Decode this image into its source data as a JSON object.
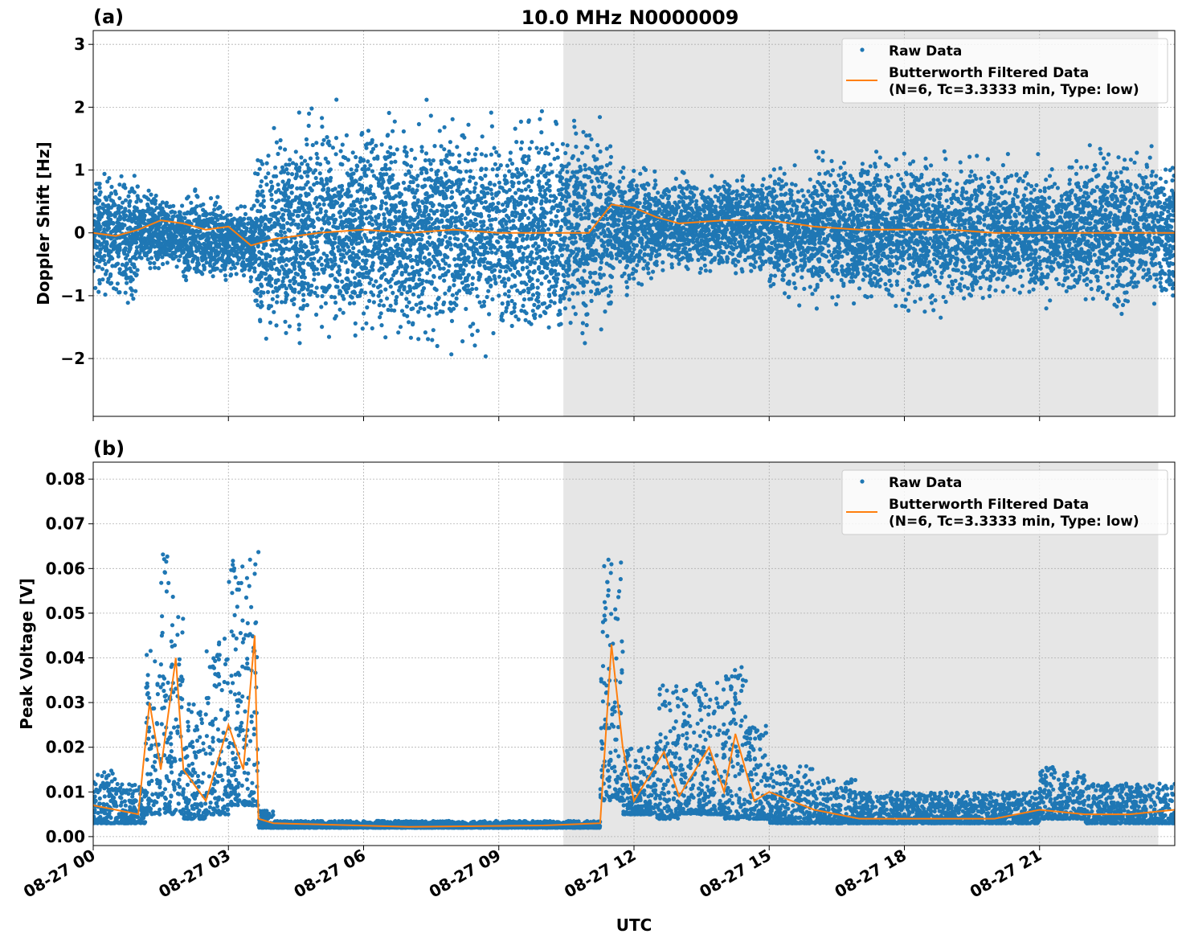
{
  "title": "10.0 MHz N0000009",
  "colors": {
    "raw": "#1f77b4",
    "filtered": "#ff7f0e",
    "shade": "#e6e6e6",
    "grid": "#b0b0b0"
  },
  "chart_data": [
    {
      "type": "scatter",
      "panel_label": "(a)",
      "ylabel": "Doppler Shift [Hz]",
      "xlabel": "",
      "ylim": [
        -2.92,
        3.22
      ],
      "yticks": [
        {
          "v": -2,
          "label": "−2"
        },
        {
          "v": -1,
          "label": "−1"
        },
        {
          "v": 0,
          "label": "0"
        },
        {
          "v": 1,
          "label": "1"
        },
        {
          "v": 2,
          "label": "2"
        },
        {
          "v": 3,
          "label": "3"
        }
      ],
      "grid": true,
      "legend": {
        "placement": "top-right",
        "entries": [
          "Raw Data",
          "Butterworth Filtered Data",
          "(N=6, Tc=3.3333 min, Type: low)"
        ]
      },
      "shaded_interval": [
        "10:26",
        "23:38"
      ],
      "raw_data_envelope": [
        {
          "start": "00:00",
          "end": "00:30",
          "low": -0.9,
          "high": 0.9
        },
        {
          "start": "00:30",
          "end": "01:00",
          "low": -1.0,
          "high": 0.9
        },
        {
          "start": "01:00",
          "end": "01:30",
          "low": -0.6,
          "high": 0.6
        },
        {
          "start": "01:30",
          "end": "02:00",
          "low": -0.6,
          "high": 0.5
        },
        {
          "start": "02:00",
          "end": "02:30",
          "low": -0.8,
          "high": 0.6
        },
        {
          "start": "02:30",
          "end": "03:00",
          "low": -0.8,
          "high": 0.6
        },
        {
          "start": "03:00",
          "end": "03:35",
          "low": -0.7,
          "high": 0.4
        },
        {
          "start": "03:35",
          "end": "04:00",
          "low": -1.5,
          "high": 1.2
        },
        {
          "start": "04:00",
          "end": "04:30",
          "low": -1.6,
          "high": 1.6
        },
        {
          "start": "04:30",
          "end": "10:30",
          "low": -1.6,
          "high": 1.7
        },
        {
          "start": "10:30",
          "end": "11:30",
          "low": -1.5,
          "high": 1.6
        },
        {
          "start": "11:30",
          "end": "12:30",
          "low": -0.8,
          "high": 1.0
        },
        {
          "start": "12:30",
          "end": "14:00",
          "low": -0.6,
          "high": 0.85
        },
        {
          "start": "14:00",
          "end": "15:00",
          "low": -0.6,
          "high": 0.9
        },
        {
          "start": "15:00",
          "end": "16:00",
          "low": -1.0,
          "high": 1.0
        },
        {
          "start": "16:00",
          "end": "20:00",
          "low": -1.1,
          "high": 1.15
        },
        {
          "start": "20:00",
          "end": "22:00",
          "low": -1.0,
          "high": 1.0
        },
        {
          "start": "22:00",
          "end": "23:59",
          "low": -1.1,
          "high": 1.2
        }
      ],
      "filtered": [
        {
          "t": "00:00",
          "v": 0.0
        },
        {
          "t": "00:30",
          "v": -0.05
        },
        {
          "t": "01:00",
          "v": 0.05
        },
        {
          "t": "01:30",
          "v": 0.2
        },
        {
          "t": "02:00",
          "v": 0.15
        },
        {
          "t": "02:30",
          "v": 0.05
        },
        {
          "t": "03:00",
          "v": 0.1
        },
        {
          "t": "03:30",
          "v": -0.2
        },
        {
          "t": "04:00",
          "v": -0.1
        },
        {
          "t": "05:00",
          "v": 0.0
        },
        {
          "t": "06:00",
          "v": 0.05
        },
        {
          "t": "07:00",
          "v": 0.0
        },
        {
          "t": "08:00",
          "v": 0.05
        },
        {
          "t": "09:00",
          "v": 0.0
        },
        {
          "t": "10:00",
          "v": 0.0
        },
        {
          "t": "11:00",
          "v": 0.0
        },
        {
          "t": "11:30",
          "v": 0.45
        },
        {
          "t": "12:00",
          "v": 0.4
        },
        {
          "t": "12:30",
          "v": 0.25
        },
        {
          "t": "13:00",
          "v": 0.15
        },
        {
          "t": "14:00",
          "v": 0.2
        },
        {
          "t": "15:00",
          "v": 0.2
        },
        {
          "t": "16:00",
          "v": 0.1
        },
        {
          "t": "17:00",
          "v": 0.05
        },
        {
          "t": "18:00",
          "v": 0.05
        },
        {
          "t": "19:00",
          "v": 0.05
        },
        {
          "t": "20:00",
          "v": 0.0
        },
        {
          "t": "21:00",
          "v": 0.0
        },
        {
          "t": "22:00",
          "v": 0.0
        },
        {
          "t": "23:00",
          "v": 0.0
        },
        {
          "t": "23:59",
          "v": 0.0
        }
      ]
    },
    {
      "type": "scatter",
      "panel_label": "(b)",
      "ylabel": "Peak Voltage [V]",
      "xlabel": "UTC",
      "ylim": [
        -0.002,
        0.0838
      ],
      "yticks": [
        {
          "v": 0,
          "label": "0.00"
        },
        {
          "v": 0.01,
          "label": "0.01"
        },
        {
          "v": 0.02,
          "label": "0.02"
        },
        {
          "v": 0.03,
          "label": "0.03"
        },
        {
          "v": 0.04,
          "label": "0.04"
        },
        {
          "v": 0.05,
          "label": "0.05"
        },
        {
          "v": 0.06,
          "label": "0.06"
        },
        {
          "v": 0.07,
          "label": "0.07"
        },
        {
          "v": 0.08,
          "label": "0.08"
        }
      ],
      "xticks": [
        "08-27 00",
        "08-27 03",
        "08-27 06",
        "08-27 09",
        "08-27 12",
        "08-27 15",
        "08-27 18",
        "08-27 21"
      ],
      "grid": true,
      "legend": {
        "placement": "top-right",
        "entries": [
          "Raw Data",
          "Butterworth Filtered Data",
          "(N=6, Tc=3.3333 min, Type: low)"
        ]
      },
      "shaded_interval": [
        "10:26",
        "23:38"
      ],
      "raw_data_envelope": [
        {
          "start": "00:00",
          "end": "00:30",
          "low": 0.003,
          "high": 0.015
        },
        {
          "start": "00:30",
          "end": "01:10",
          "low": 0.003,
          "high": 0.012
        },
        {
          "start": "01:10",
          "end": "01:30",
          "low": 0.005,
          "high": 0.045
        },
        {
          "start": "01:30",
          "end": "02:00",
          "low": 0.005,
          "high": 0.065
        },
        {
          "start": "02:00",
          "end": "02:30",
          "low": 0.004,
          "high": 0.03
        },
        {
          "start": "02:30",
          "end": "03:00",
          "low": 0.005,
          "high": 0.045
        },
        {
          "start": "03:00",
          "end": "03:40",
          "low": 0.007,
          "high": 0.065
        },
        {
          "start": "03:40",
          "end": "04:00",
          "low": 0.002,
          "high": 0.006
        },
        {
          "start": "04:00",
          "end": "11:15",
          "low": 0.002,
          "high": 0.0035
        },
        {
          "start": "11:15",
          "end": "11:45",
          "low": 0.008,
          "high": 0.062
        },
        {
          "start": "11:45",
          "end": "12:30",
          "low": 0.005,
          "high": 0.02
        },
        {
          "start": "12:30",
          "end": "13:00",
          "low": 0.004,
          "high": 0.035
        },
        {
          "start": "13:00",
          "end": "14:00",
          "low": 0.005,
          "high": 0.035
        },
        {
          "start": "14:00",
          "end": "14:30",
          "low": 0.004,
          "high": 0.04
        },
        {
          "start": "14:30",
          "end": "15:00",
          "low": 0.004,
          "high": 0.025
        },
        {
          "start": "15:00",
          "end": "16:00",
          "low": 0.003,
          "high": 0.016
        },
        {
          "start": "16:00",
          "end": "17:00",
          "low": 0.003,
          "high": 0.013
        },
        {
          "start": "17:00",
          "end": "21:00",
          "low": 0.003,
          "high": 0.01
        },
        {
          "start": "21:00",
          "end": "22:00",
          "low": 0.004,
          "high": 0.016
        },
        {
          "start": "22:00",
          "end": "23:59",
          "low": 0.003,
          "high": 0.012
        }
      ],
      "filtered": [
        {
          "t": "00:00",
          "v": 0.007
        },
        {
          "t": "00:30",
          "v": 0.006
        },
        {
          "t": "01:00",
          "v": 0.005
        },
        {
          "t": "01:15",
          "v": 0.03
        },
        {
          "t": "01:30",
          "v": 0.015
        },
        {
          "t": "01:50",
          "v": 0.04
        },
        {
          "t": "02:00",
          "v": 0.015
        },
        {
          "t": "02:30",
          "v": 0.008
        },
        {
          "t": "03:00",
          "v": 0.025
        },
        {
          "t": "03:20",
          "v": 0.015
        },
        {
          "t": "03:35",
          "v": 0.045
        },
        {
          "t": "03:40",
          "v": 0.004
        },
        {
          "t": "04:00",
          "v": 0.003
        },
        {
          "t": "07:00",
          "v": 0.0022
        },
        {
          "t": "10:00",
          "v": 0.0025
        },
        {
          "t": "11:15",
          "v": 0.003
        },
        {
          "t": "11:30",
          "v": 0.043
        },
        {
          "t": "11:45",
          "v": 0.02
        },
        {
          "t": "12:00",
          "v": 0.008
        },
        {
          "t": "12:40",
          "v": 0.019
        },
        {
          "t": "13:00",
          "v": 0.009
        },
        {
          "t": "13:40",
          "v": 0.02
        },
        {
          "t": "14:00",
          "v": 0.01
        },
        {
          "t": "14:15",
          "v": 0.023
        },
        {
          "t": "14:40",
          "v": 0.008
        },
        {
          "t": "15:00",
          "v": 0.01
        },
        {
          "t": "16:00",
          "v": 0.006
        },
        {
          "t": "17:00",
          "v": 0.004
        },
        {
          "t": "18:00",
          "v": 0.004
        },
        {
          "t": "19:00",
          "v": 0.004
        },
        {
          "t": "20:00",
          "v": 0.004
        },
        {
          "t": "21:00",
          "v": 0.006
        },
        {
          "t": "22:00",
          "v": 0.005
        },
        {
          "t": "23:00",
          "v": 0.005
        },
        {
          "t": "23:59",
          "v": 0.006
        }
      ]
    }
  ]
}
